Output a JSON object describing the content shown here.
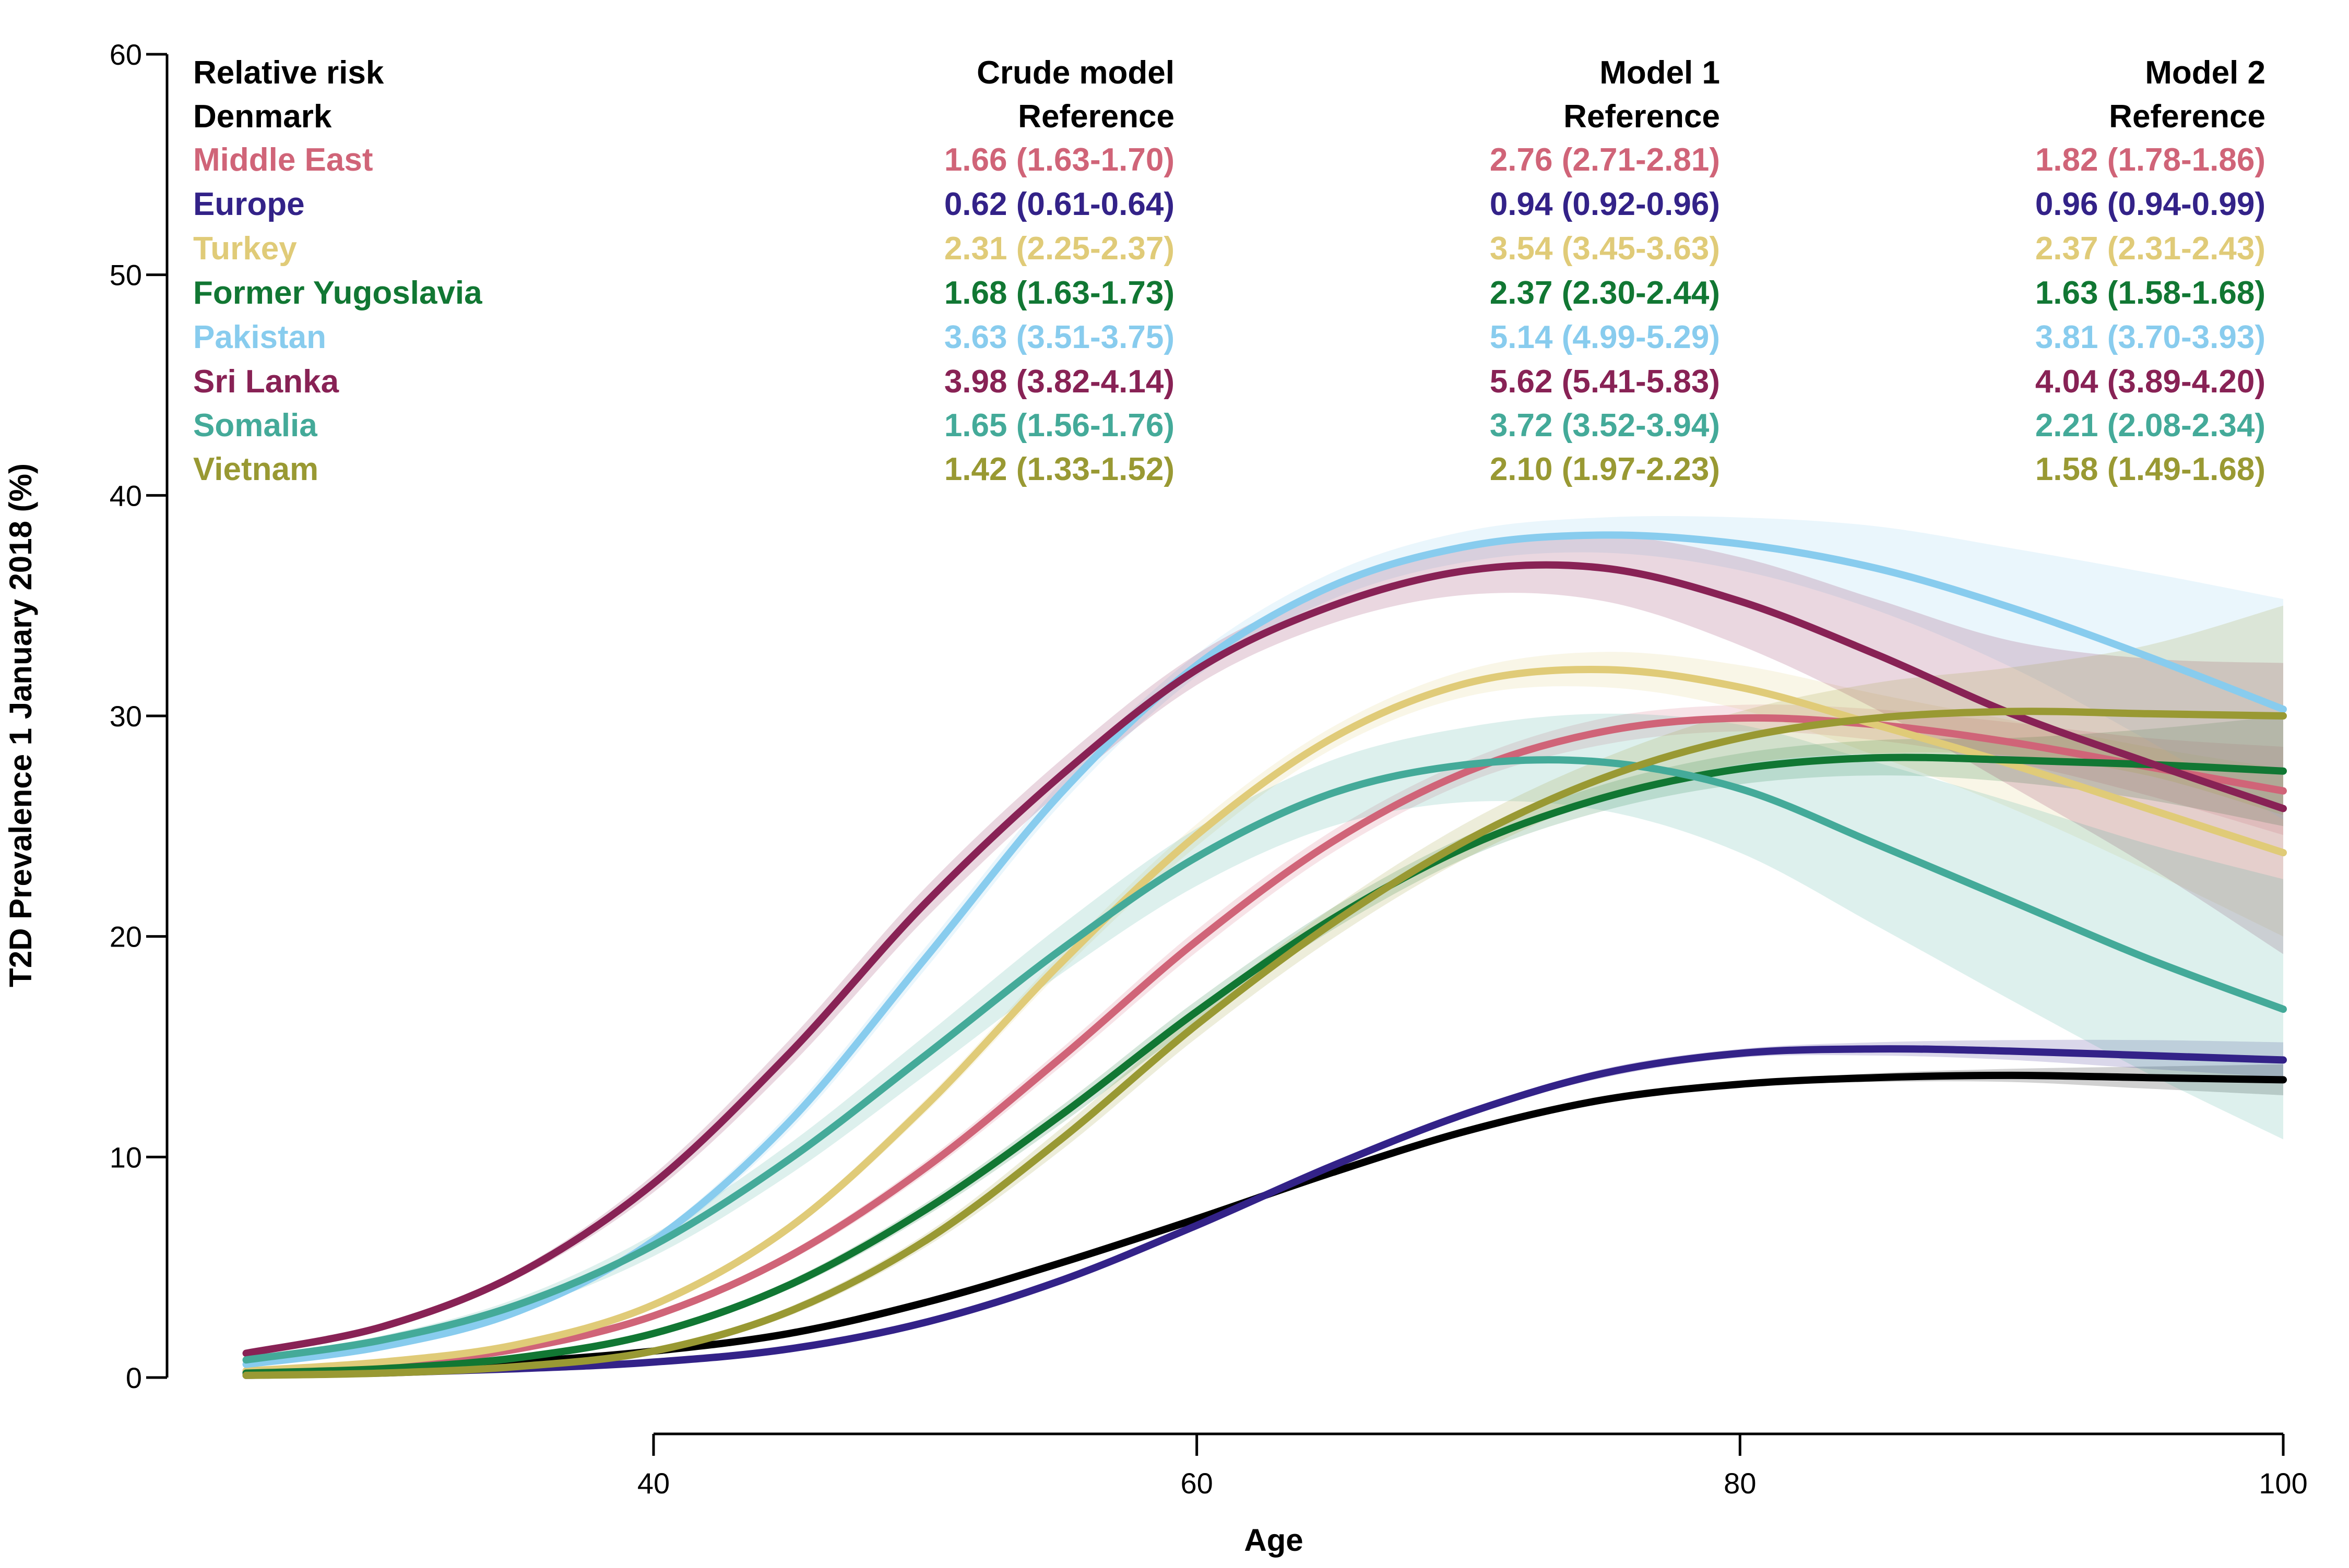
{
  "chart_data": {
    "type": "line",
    "xlabel": "Age",
    "ylabel": "T2D Prevalence 1 January 2018 (%)",
    "xlim": [
      25,
      100
    ],
    "ylim": [
      0,
      60
    ],
    "x_ticks": [
      "40",
      "60",
      "80",
      "100"
    ],
    "y_ticks": [
      "0",
      "10",
      "20",
      "30",
      "40",
      "50",
      "60"
    ],
    "grid": false,
    "table": {
      "header": [
        "Relative risk",
        "Crude model",
        "Model 1",
        "Model 2"
      ],
      "reference_row": [
        "Denmark",
        "Reference",
        "Reference",
        "Reference"
      ],
      "rows": [
        {
          "name": "Middle East",
          "color": "#D06478",
          "values": [
            "1.66 (1.63-1.70)",
            "2.76 (2.71-2.81)",
            "1.82 (1.78-1.86)"
          ]
        },
        {
          "name": "Europe",
          "color": "#332288",
          "values": [
            "0.62 (0.61-0.64)",
            "0.94 (0.92-0.96)",
            "0.96 (0.94-0.99)"
          ]
        },
        {
          "name": "Turkey",
          "color": "#E0CB78",
          "values": [
            "2.31 (2.25-2.37)",
            "3.54 (3.45-3.63)",
            "2.37 (2.31-2.43)"
          ]
        },
        {
          "name": "Former Yugoslavia",
          "color": "#117733",
          "values": [
            "1.68 (1.63-1.73)",
            "2.37 (2.30-2.44)",
            "1.63 (1.58-1.68)"
          ]
        },
        {
          "name": "Pakistan",
          "color": "#88CCEE",
          "values": [
            "3.63 (3.51-3.75)",
            "5.14 (4.99-5.29)",
            "3.81 (3.70-3.93)"
          ]
        },
        {
          "name": "Sri Lanka",
          "color": "#882255",
          "values": [
            "3.98 (3.82-4.14)",
            "5.62 (5.41-5.83)",
            "4.04 (3.89-4.20)"
          ]
        },
        {
          "name": "Somalia",
          "color": "#44AA99",
          "values": [
            "1.65 (1.56-1.76)",
            "3.72 (3.52-3.94)",
            "2.21 (2.08-2.34)"
          ]
        },
        {
          "name": "Vietnam",
          "color": "#999933",
          "values": [
            "1.42 (1.33-1.52)",
            "2.10 (1.97-2.23)",
            "1.58 (1.49-1.68)"
          ]
        }
      ]
    },
    "x": [
      25,
      30,
      35,
      40,
      45,
      50,
      55,
      60,
      65,
      70,
      75,
      80,
      85,
      90,
      95,
      100
    ],
    "series": [
      {
        "name": "Denmark",
        "color": "#000000",
        "values": [
          0.2,
          0.4,
          0.7,
          1.2,
          2.0,
          3.4,
          5.2,
          7.2,
          9.3,
          11.2,
          12.6,
          13.3,
          13.6,
          13.7,
          13.6,
          13.5
        ],
        "lower": [
          0.2,
          0.4,
          0.7,
          1.2,
          2.0,
          3.3,
          5.1,
          7.1,
          9.2,
          11.1,
          12.5,
          13.2,
          13.4,
          13.4,
          13.1,
          12.8
        ],
        "upper": [
          0.2,
          0.4,
          0.7,
          1.2,
          2.0,
          3.4,
          5.3,
          7.3,
          9.4,
          11.3,
          12.7,
          13.4,
          13.8,
          14.0,
          14.1,
          14.2
        ]
      },
      {
        "name": "Europe",
        "color": "#332288",
        "values": [
          0.1,
          0.2,
          0.4,
          0.7,
          1.3,
          2.5,
          4.4,
          6.9,
          9.6,
          12.0,
          13.8,
          14.7,
          14.9,
          14.8,
          14.6,
          14.4
        ],
        "lower": [
          0.1,
          0.2,
          0.4,
          0.7,
          1.3,
          2.4,
          4.3,
          6.8,
          9.5,
          11.9,
          13.6,
          14.5,
          14.6,
          14.4,
          14.0,
          13.6
        ],
        "upper": [
          0.1,
          0.2,
          0.4,
          0.7,
          1.3,
          2.6,
          4.5,
          7.0,
          9.7,
          12.1,
          14.0,
          14.9,
          15.2,
          15.3,
          15.3,
          15.2
        ]
      },
      {
        "name": "Middle East",
        "color": "#D06478",
        "values": [
          0.3,
          0.6,
          1.3,
          2.8,
          5.5,
          9.5,
          14.5,
          19.8,
          24.3,
          27.5,
          29.3,
          29.9,
          29.6,
          28.8,
          27.7,
          26.6
        ],
        "lower": [
          0.3,
          0.6,
          1.3,
          2.7,
          5.3,
          9.2,
          14.1,
          19.3,
          23.8,
          27.0,
          28.7,
          29.3,
          28.9,
          27.9,
          26.4,
          24.6
        ],
        "upper": [
          0.3,
          0.6,
          1.3,
          2.9,
          5.7,
          9.8,
          14.9,
          20.3,
          24.8,
          28.0,
          29.9,
          30.5,
          30.3,
          29.7,
          29.0,
          28.6
        ]
      },
      {
        "name": "Turkey",
        "color": "#E0CB78",
        "values": [
          0.3,
          0.7,
          1.5,
          3.3,
          6.8,
          12.3,
          18.8,
          24.6,
          29.0,
          31.5,
          32.1,
          31.3,
          29.6,
          27.8,
          25.8,
          23.8
        ],
        "lower": [
          0.3,
          0.7,
          1.5,
          3.2,
          6.6,
          12.0,
          18.4,
          24.1,
          28.5,
          30.9,
          31.3,
          30.3,
          28.2,
          25.8,
          23.0,
          20.0
        ],
        "upper": [
          0.3,
          0.7,
          1.5,
          3.4,
          7.0,
          12.6,
          19.2,
          25.1,
          29.5,
          32.1,
          32.9,
          32.3,
          31.0,
          29.8,
          28.6,
          27.6
        ]
      },
      {
        "name": "Former Yugoslavia",
        "color": "#117733",
        "values": [
          0.2,
          0.4,
          0.9,
          2.0,
          4.2,
          7.6,
          11.9,
          16.6,
          20.8,
          24.1,
          26.3,
          27.6,
          28.1,
          28.0,
          27.8,
          27.5
        ],
        "lower": [
          0.2,
          0.4,
          0.9,
          1.9,
          4.0,
          7.3,
          11.5,
          16.1,
          20.3,
          23.6,
          25.7,
          26.9,
          27.3,
          27.0,
          26.2,
          25.0
        ],
        "upper": [
          0.2,
          0.4,
          0.9,
          2.1,
          4.4,
          7.9,
          12.3,
          17.1,
          21.3,
          24.6,
          26.9,
          28.3,
          28.9,
          29.0,
          29.4,
          30.0
        ]
      },
      {
        "name": "Pakistan",
        "color": "#88CCEE",
        "values": [
          0.6,
          1.4,
          3.0,
          6.2,
          11.6,
          19.0,
          26.5,
          32.3,
          35.9,
          37.7,
          38.2,
          37.8,
          36.7,
          34.9,
          32.7,
          30.3
        ],
        "lower": [
          0.6,
          1.4,
          2.9,
          6.0,
          11.2,
          18.5,
          26.0,
          31.8,
          35.3,
          37.0,
          37.4,
          36.6,
          34.8,
          32.2,
          28.9,
          25.3
        ],
        "upper": [
          0.6,
          1.4,
          3.1,
          6.4,
          12.0,
          19.5,
          27.0,
          32.8,
          36.5,
          38.4,
          39.0,
          39.0,
          38.6,
          37.6,
          36.5,
          35.3
        ]
      },
      {
        "name": "Sri Lanka",
        "color": "#882255",
        "values": [
          1.1,
          2.3,
          4.7,
          8.8,
          14.7,
          21.5,
          27.3,
          32.1,
          35.0,
          36.6,
          36.7,
          35.2,
          32.8,
          30.1,
          27.9,
          25.8
        ],
        "lower": [
          1.0,
          2.2,
          4.5,
          8.4,
          14.1,
          20.8,
          26.6,
          31.4,
          34.2,
          35.5,
          35.2,
          33.2,
          30.3,
          26.8,
          23.2,
          19.2
        ],
        "upper": [
          1.2,
          2.4,
          4.9,
          9.2,
          15.3,
          22.2,
          28.0,
          32.8,
          35.8,
          37.7,
          38.2,
          37.2,
          35.3,
          33.4,
          32.6,
          32.4
        ]
      },
      {
        "name": "Somalia",
        "color": "#44AA99",
        "values": [
          0.8,
          1.7,
          3.3,
          6.0,
          9.9,
          14.6,
          19.4,
          23.6,
          26.5,
          27.8,
          27.9,
          26.7,
          24.2,
          21.6,
          19.0,
          16.7
        ],
        "lower": [
          0.7,
          1.5,
          3.0,
          5.5,
          9.2,
          13.7,
          18.3,
          22.3,
          25.0,
          26.1,
          25.7,
          23.8,
          20.5,
          17.1,
          13.8,
          10.8
        ],
        "upper": [
          0.9,
          1.9,
          3.6,
          6.5,
          10.6,
          15.5,
          20.5,
          24.9,
          28.0,
          29.5,
          30.1,
          29.6,
          27.9,
          26.1,
          24.2,
          22.6
        ]
      },
      {
        "name": "Vietnam",
        "color": "#999933",
        "values": [
          0.1,
          0.2,
          0.5,
          1.2,
          3.0,
          6.2,
          10.8,
          16.0,
          20.6,
          24.4,
          27.2,
          29.0,
          29.9,
          30.2,
          30.1,
          30.0
        ],
        "lower": [
          0.1,
          0.2,
          0.5,
          1.1,
          2.8,
          5.9,
          10.3,
          15.4,
          19.9,
          23.6,
          26.3,
          27.8,
          28.3,
          28.2,
          27.3,
          25.5
        ],
        "upper": [
          0.1,
          0.2,
          0.5,
          1.3,
          3.2,
          6.5,
          11.3,
          16.6,
          21.3,
          25.2,
          28.1,
          30.2,
          31.5,
          32.2,
          33.2,
          35.0
        ]
      }
    ]
  }
}
